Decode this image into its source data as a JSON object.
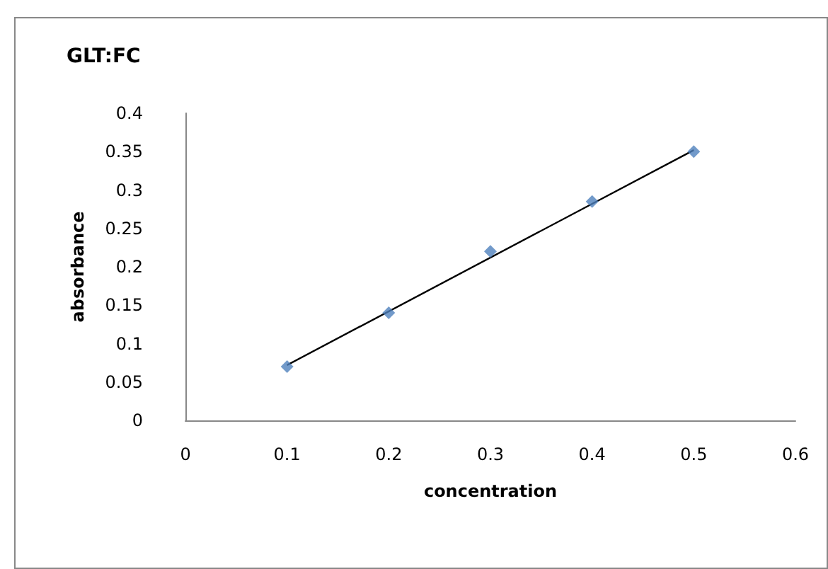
{
  "chart_data": {
    "type": "scatter",
    "title": "GLT:FC",
    "xlabel": "concentration",
    "ylabel": "absorbance",
    "x": [
      0.1,
      0.2,
      0.3,
      0.4,
      0.5
    ],
    "series": [
      {
        "color": "#4f81bd",
        "values": [
          0.07,
          0.14,
          0.22,
          0.285,
          0.35
        ],
        "marker": "diamond"
      },
      {
        "type": "line",
        "color": "#000000",
        "x": [
          0.1,
          0.5
        ],
        "values": [
          0.072,
          0.352
        ],
        "marker": "none",
        "line_style": "solid"
      }
    ],
    "xlim": [
      0,
      0.6
    ],
    "xticks": [
      0,
      0.1,
      0.2,
      0.3,
      0.4,
      0.5,
      0.6
    ],
    "ylim": [
      0,
      0.4
    ],
    "yticks": [
      0,
      0.05,
      0.1,
      0.15,
      0.2,
      0.25,
      0.3,
      0.35,
      0.4
    ],
    "grid": false
  }
}
